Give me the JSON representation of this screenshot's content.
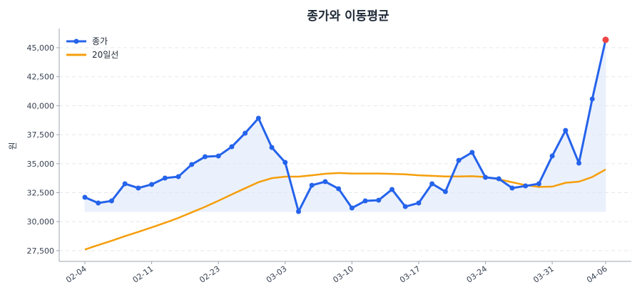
{
  "chart_data": {
    "type": "line",
    "title": "종가와 이동평균",
    "xlabel": "",
    "ylabel": "원",
    "ylim": [
      26800,
      46700
    ],
    "yticks": [
      27500,
      30000,
      32500,
      35000,
      37500,
      40000,
      42500,
      45000
    ],
    "ytick_labels": [
      "27,500",
      "30,000",
      "32,500",
      "35,000",
      "37,500",
      "40,000",
      "42,500",
      "45,000"
    ],
    "xticks": [
      {
        "index": 0,
        "label": "02-04"
      },
      {
        "index": 5,
        "label": "02-11"
      },
      {
        "index": 10,
        "label": "02-23"
      },
      {
        "index": 15,
        "label": "03-03"
      },
      {
        "index": 20,
        "label": "03-10"
      },
      {
        "index": 25,
        "label": "03-17"
      },
      {
        "index": 30,
        "label": "03-24"
      },
      {
        "index": 35,
        "label": "03-31"
      },
      {
        "index": 39,
        "label": "04-06"
      }
    ],
    "grid": "horizontal dashed",
    "legend": "top-left",
    "series": [
      {
        "name": "종가",
        "color": "#2563eb",
        "markers": true,
        "values": [
          32100,
          31610,
          31790,
          33270,
          32900,
          33210,
          33760,
          33880,
          34930,
          35600,
          35660,
          36460,
          37630,
          38920,
          36400,
          35110,
          30870,
          33140,
          33450,
          32840,
          31180,
          31790,
          31850,
          32780,
          31300,
          31610,
          33270,
          32590,
          35290,
          35970,
          33820,
          33700,
          32900,
          33080,
          33270,
          35660,
          37870,
          35050,
          40580,
          45680
        ]
      },
      {
        "name": "20일선",
        "color": "#f59e0b",
        "markers": false,
        "values": [
          27600,
          27980,
          28350,
          28750,
          29120,
          29500,
          29900,
          30320,
          30800,
          31280,
          31800,
          32350,
          32880,
          33400,
          33750,
          33880,
          33880,
          34000,
          34130,
          34200,
          34150,
          34150,
          34150,
          34120,
          34080,
          34000,
          33950,
          33900,
          33900,
          33920,
          33850,
          33650,
          33400,
          33150,
          33000,
          33020,
          33350,
          33450,
          33850,
          34500
        ]
      }
    ],
    "highlight_last_color": "#ef4444",
    "fill_color": "#dbe6fb"
  }
}
